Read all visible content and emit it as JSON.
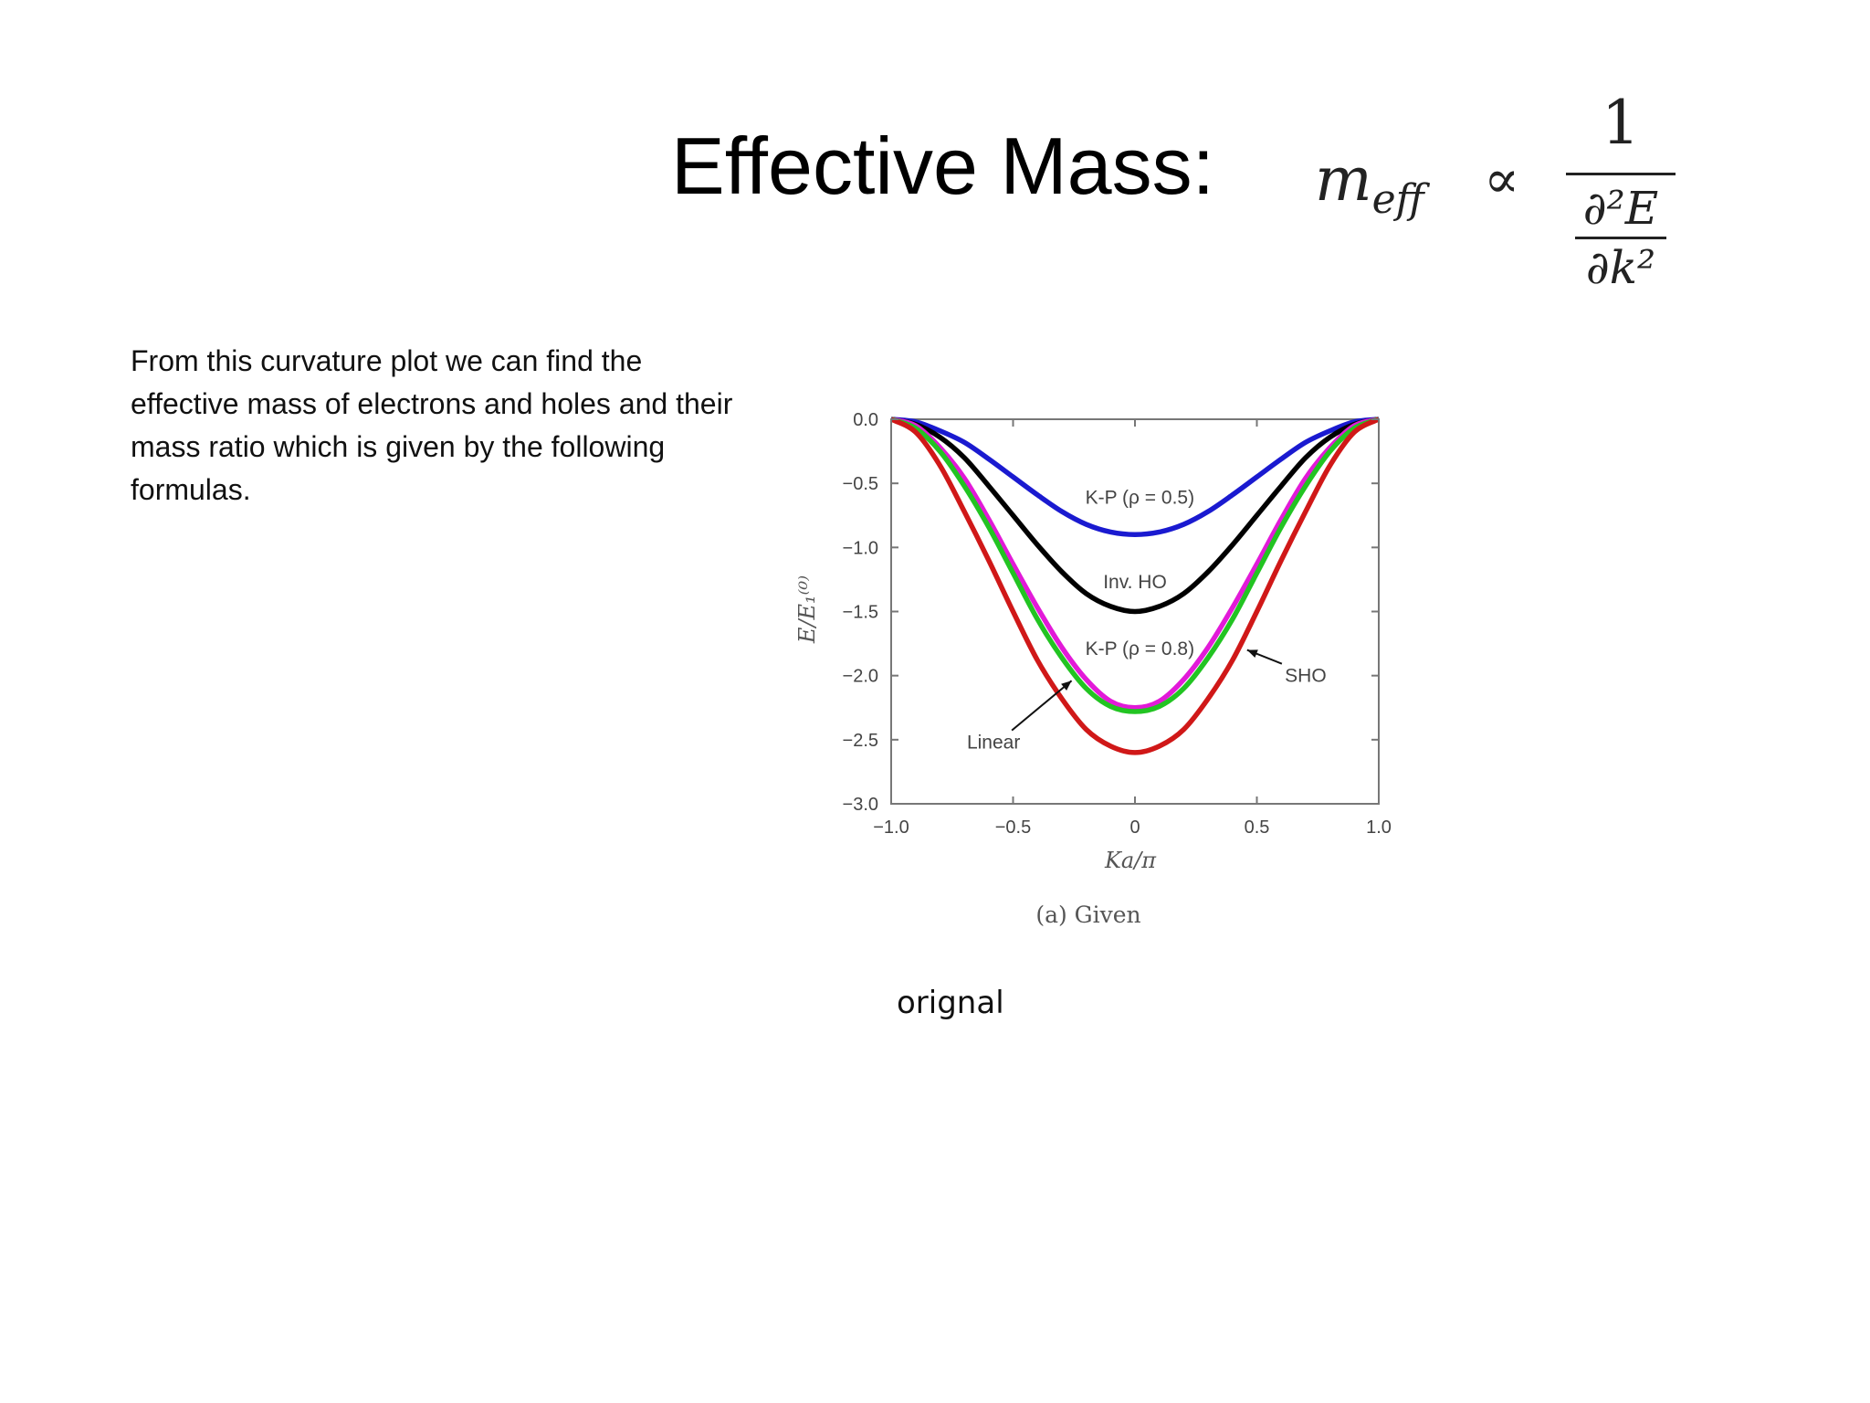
{
  "slide": {
    "title": "Effective Mass:",
    "formula": {
      "lhs_symbol": "m",
      "lhs_subscript": "eff",
      "relation": "∝",
      "numerator": "1",
      "inner_numerator": "∂²E",
      "inner_denominator": "∂k²"
    },
    "paragraph": "From this curvature plot we can find the effective mass of electrons and holes and their mass ratio which is given by the following formulas.",
    "note": "orignal"
  },
  "chart_data": {
    "type": "line",
    "title": "",
    "caption": "(a) Given",
    "xlabel": "Ka/π",
    "ylabel": "E/E₁⁽⁰⁾",
    "xlim": [
      -1.0,
      1.0
    ],
    "ylim": [
      -3.0,
      0.0
    ],
    "xticks": [
      "−1.0",
      "−0.5",
      "0",
      "0.5",
      "1.0"
    ],
    "xtick_values": [
      -1.0,
      -0.5,
      0,
      0.5,
      1.0
    ],
    "yticks": [
      "0.0",
      "−0.5",
      "−1.0",
      "−1.5",
      "−2.0",
      "−2.5",
      "−3.0"
    ],
    "ytick_values": [
      0.0,
      -0.5,
      -1.0,
      -1.5,
      -2.0,
      -2.5,
      -3.0
    ],
    "x": [
      -1.0,
      -0.9,
      -0.8,
      -0.7,
      -0.6,
      -0.5,
      -0.4,
      -0.3,
      -0.2,
      -0.1,
      0.0,
      0.1,
      0.2,
      0.3,
      0.4,
      0.5,
      0.6,
      0.7,
      0.8,
      0.9,
      1.0
    ],
    "series": [
      {
        "name": "K-P (ρ = 0.5)",
        "color": "#1a1ad0",
        "values": [
          0.0,
          -0.02,
          -0.09,
          -0.18,
          -0.31,
          -0.45,
          -0.59,
          -0.72,
          -0.82,
          -0.88,
          -0.9,
          -0.88,
          -0.82,
          -0.72,
          -0.59,
          -0.45,
          -0.31,
          -0.18,
          -0.09,
          -0.02,
          0.0
        ]
      },
      {
        "name": "Inv. HO",
        "color": "#000000",
        "values": [
          0.0,
          -0.04,
          -0.14,
          -0.3,
          -0.52,
          -0.75,
          -0.98,
          -1.19,
          -1.36,
          -1.46,
          -1.5,
          -1.46,
          -1.36,
          -1.19,
          -0.98,
          -0.75,
          -0.52,
          -0.3,
          -0.14,
          -0.04,
          0.0
        ]
      },
      {
        "name": "K-P (ρ = 0.8)",
        "color": "#e21ad8",
        "values": [
          0.0,
          -0.05,
          -0.22,
          -0.46,
          -0.78,
          -1.13,
          -1.47,
          -1.78,
          -2.03,
          -2.2,
          -2.25,
          -2.2,
          -2.03,
          -1.78,
          -1.47,
          -1.13,
          -0.78,
          -0.46,
          -0.22,
          -0.05,
          0.0
        ]
      },
      {
        "name": "Linear",
        "color": "#22c422",
        "values": [
          0.0,
          -0.07,
          -0.25,
          -0.52,
          -0.84,
          -1.2,
          -1.56,
          -1.86,
          -2.1,
          -2.24,
          -2.28,
          -2.24,
          -2.1,
          -1.86,
          -1.56,
          -1.2,
          -0.84,
          -0.52,
          -0.25,
          -0.07,
          0.0
        ]
      },
      {
        "name": "SHO",
        "color": "#d01818",
        "values": [
          0.0,
          -0.1,
          -0.36,
          -0.72,
          -1.1,
          -1.5,
          -1.88,
          -2.18,
          -2.42,
          -2.55,
          -2.6,
          -2.55,
          -2.42,
          -2.18,
          -1.88,
          -1.5,
          -1.1,
          -0.72,
          -0.36,
          -0.1,
          0.0
        ]
      }
    ],
    "grid": false,
    "legend": "inline annotations"
  }
}
